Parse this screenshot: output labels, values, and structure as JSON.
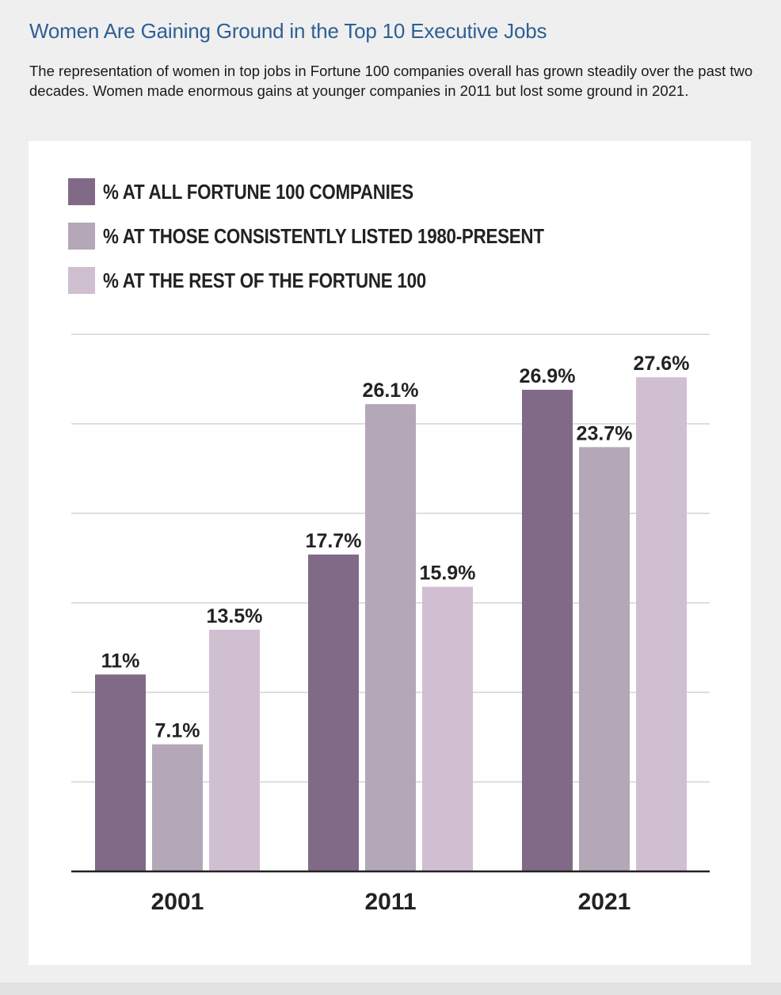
{
  "header": {
    "title": "Women Are Gaining Ground in the Top 10 Executive Jobs",
    "subtitle": "The representation of women in top jobs in Fortune 100 companies overall has grown steadily over the past two decades. Women made enormous gains at younger companies in 2011 but lost some ground in 2021."
  },
  "colors": {
    "series": [
      "#806a88",
      "#b4a7b8",
      "#d0bfd1"
    ],
    "grid": "#cccccc",
    "axis": "#222222",
    "title": "#2e5f95"
  },
  "chart_data": {
    "type": "bar",
    "categories": [
      "2001",
      "2011",
      "2021"
    ],
    "series": [
      {
        "name": "% AT ALL FORTUNE 100 COMPANIES",
        "values": [
          11,
          17.7,
          26.9
        ],
        "labels": [
          "11%",
          "17.7%",
          "26.9%"
        ]
      },
      {
        "name": "% AT THOSE CONSISTENTLY LISTED 1980-PRESENT",
        "values": [
          7.1,
          26.1,
          23.7
        ],
        "labels": [
          "7.1%",
          "26.1%",
          "23.7%"
        ]
      },
      {
        "name": "% AT THE REST OF THE FORTUNE 100",
        "values": [
          13.5,
          15.9,
          27.6
        ],
        "labels": [
          "13.5%",
          "15.9%",
          "27.6%"
        ]
      }
    ],
    "ylim": [
      0,
      30
    ],
    "grid": true,
    "legend": "top-left",
    "title": "",
    "xlabel": "",
    "ylabel": ""
  }
}
